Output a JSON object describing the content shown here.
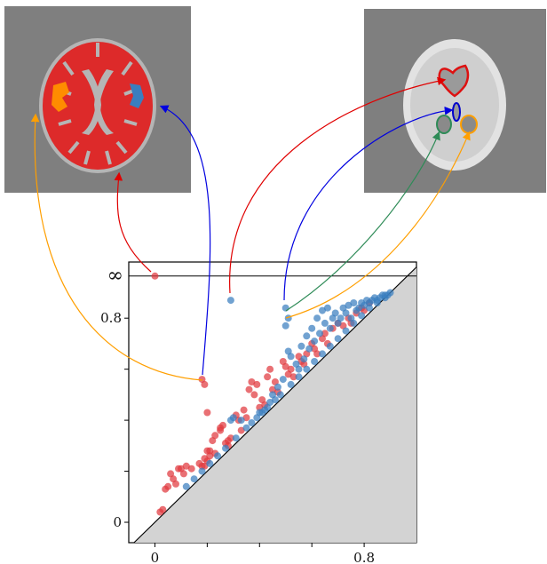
{
  "chart_data": {
    "type": "scatter",
    "title": "",
    "xlabel": "",
    "ylabel": "",
    "xlim": [
      -0.1,
      1.0
    ],
    "ylim": [
      -0.08,
      1.02
    ],
    "x_tick_labels": [
      {
        "value": 0,
        "label": "0"
      },
      {
        "value": 0.8,
        "label": "0.8"
      }
    ],
    "y_tick_labels": [
      {
        "value": 0,
        "label": "0"
      },
      {
        "value": 0.8,
        "label": "0.8"
      }
    ],
    "infinity": {
      "label": "∞",
      "value": 0.965
    },
    "diagonal_fill": "#d3d3d3",
    "series": [
      {
        "color": "#e0393e",
        "points": [
          [
            0.0,
            0.965
          ],
          [
            0.18,
            0.56
          ],
          [
            0.19,
            0.54
          ],
          [
            0.2,
            0.43
          ],
          [
            0.02,
            0.04
          ],
          [
            0.03,
            0.05
          ],
          [
            0.04,
            0.13
          ],
          [
            0.05,
            0.14
          ],
          [
            0.06,
            0.19
          ],
          [
            0.07,
            0.17
          ],
          [
            0.08,
            0.15
          ],
          [
            0.1,
            0.21
          ],
          [
            0.11,
            0.19
          ],
          [
            0.09,
            0.21
          ],
          [
            0.12,
            0.22
          ],
          [
            0.14,
            0.21
          ],
          [
            0.17,
            0.23
          ],
          [
            0.18,
            0.22
          ],
          [
            0.19,
            0.22
          ],
          [
            0.19,
            0.25
          ],
          [
            0.2,
            0.24
          ],
          [
            0.2,
            0.28
          ],
          [
            0.21,
            0.26
          ],
          [
            0.21,
            0.28
          ],
          [
            0.23,
            0.27
          ],
          [
            0.23,
            0.34
          ],
          [
            0.22,
            0.32
          ],
          [
            0.25,
            0.37
          ],
          [
            0.26,
            0.38
          ],
          [
            0.25,
            0.36
          ],
          [
            0.28,
            0.3
          ],
          [
            0.28,
            0.32
          ],
          [
            0.29,
            0.33
          ],
          [
            0.27,
            0.31
          ],
          [
            0.31,
            0.42
          ],
          [
            0.32,
            0.4
          ],
          [
            0.33,
            0.36
          ],
          [
            0.34,
            0.44
          ],
          [
            0.35,
            0.41
          ],
          [
            0.36,
            0.52
          ],
          [
            0.37,
            0.55
          ],
          [
            0.38,
            0.5
          ],
          [
            0.39,
            0.54
          ],
          [
            0.4,
            0.45
          ],
          [
            0.41,
            0.48
          ],
          [
            0.42,
            0.46
          ],
          [
            0.43,
            0.57
          ],
          [
            0.44,
            0.6
          ],
          [
            0.45,
            0.52
          ],
          [
            0.46,
            0.55
          ],
          [
            0.47,
            0.51
          ],
          [
            0.49,
            0.63
          ],
          [
            0.5,
            0.61
          ],
          [
            0.51,
            0.58
          ],
          [
            0.52,
            0.6
          ],
          [
            0.53,
            0.57
          ],
          [
            0.55,
            0.65
          ],
          [
            0.56,
            0.63
          ],
          [
            0.57,
            0.62
          ],
          [
            0.58,
            0.66
          ],
          [
            0.6,
            0.7
          ],
          [
            0.61,
            0.68
          ],
          [
            0.62,
            0.66
          ],
          [
            0.64,
            0.72
          ],
          [
            0.65,
            0.74
          ],
          [
            0.66,
            0.7
          ],
          [
            0.68,
            0.76
          ],
          [
            0.7,
            0.78
          ],
          [
            0.72,
            0.77
          ],
          [
            0.74,
            0.8
          ],
          [
            0.75,
            0.78
          ],
          [
            0.77,
            0.82
          ],
          [
            0.79,
            0.84
          ],
          [
            0.8,
            0.83
          ],
          [
            0.82,
            0.86
          ]
        ]
      },
      {
        "color": "#3a7ebf",
        "points": [
          [
            0.29,
            0.87
          ],
          [
            0.5,
            0.84
          ],
          [
            0.51,
            0.8
          ],
          [
            0.5,
            0.77
          ],
          [
            0.29,
            0.4
          ],
          [
            0.3,
            0.41
          ],
          [
            0.33,
            0.4
          ],
          [
            0.4,
            0.43
          ],
          [
            0.42,
            0.44
          ],
          [
            0.44,
            0.47
          ],
          [
            0.45,
            0.5
          ],
          [
            0.47,
            0.53
          ],
          [
            0.49,
            0.56
          ],
          [
            0.51,
            0.67
          ],
          [
            0.52,
            0.65
          ],
          [
            0.54,
            0.62
          ],
          [
            0.55,
            0.6
          ],
          [
            0.56,
            0.69
          ],
          [
            0.57,
            0.64
          ],
          [
            0.58,
            0.73
          ],
          [
            0.59,
            0.68
          ],
          [
            0.6,
            0.76
          ],
          [
            0.61,
            0.71
          ],
          [
            0.62,
            0.8
          ],
          [
            0.63,
            0.74
          ],
          [
            0.64,
            0.83
          ],
          [
            0.65,
            0.78
          ],
          [
            0.66,
            0.84
          ],
          [
            0.67,
            0.76
          ],
          [
            0.68,
            0.8
          ],
          [
            0.69,
            0.82
          ],
          [
            0.7,
            0.78
          ],
          [
            0.71,
            0.8
          ],
          [
            0.72,
            0.84
          ],
          [
            0.73,
            0.82
          ],
          [
            0.74,
            0.85
          ],
          [
            0.75,
            0.8
          ],
          [
            0.76,
            0.86
          ],
          [
            0.77,
            0.83
          ],
          [
            0.78,
            0.84
          ],
          [
            0.79,
            0.86
          ],
          [
            0.8,
            0.85
          ],
          [
            0.81,
            0.87
          ],
          [
            0.82,
            0.86
          ],
          [
            0.83,
            0.87
          ],
          [
            0.84,
            0.88
          ],
          [
            0.85,
            0.87
          ],
          [
            0.86,
            0.88
          ],
          [
            0.87,
            0.89
          ],
          [
            0.88,
            0.88
          ],
          [
            0.89,
            0.89
          ],
          [
            0.9,
            0.9
          ],
          [
            0.35,
            0.37
          ],
          [
            0.37,
            0.39
          ],
          [
            0.39,
            0.41
          ],
          [
            0.41,
            0.43
          ],
          [
            0.43,
            0.45
          ],
          [
            0.46,
            0.48
          ],
          [
            0.48,
            0.5
          ],
          [
            0.52,
            0.54
          ],
          [
            0.55,
            0.57
          ],
          [
            0.58,
            0.6
          ],
          [
            0.61,
            0.63
          ],
          [
            0.64,
            0.66
          ],
          [
            0.67,
            0.69
          ],
          [
            0.7,
            0.72
          ],
          [
            0.73,
            0.75
          ],
          [
            0.76,
            0.78
          ],
          [
            0.79,
            0.81
          ],
          [
            0.82,
            0.84
          ],
          [
            0.85,
            0.86
          ],
          [
            0.88,
            0.89
          ],
          [
            0.12,
            0.14
          ],
          [
            0.15,
            0.17
          ],
          [
            0.18,
            0.2
          ],
          [
            0.21,
            0.23
          ],
          [
            0.24,
            0.26
          ],
          [
            0.27,
            0.29
          ],
          [
            0.31,
            0.33
          ]
        ]
      }
    ]
  },
  "mri_left": {
    "background": "#7f7f7f",
    "tissue_color": "#dd2a2a",
    "highlight_blue": "#3a7ebf",
    "highlight_orange": "#ff8c00"
  },
  "mri_right": {
    "background": "#7f7f7f"
  },
  "connectors": [
    {
      "color": "#ff9f00"
    },
    {
      "color": "#0000e0"
    },
    {
      "color": "#e00000"
    },
    {
      "color": "#2e8b57"
    }
  ]
}
